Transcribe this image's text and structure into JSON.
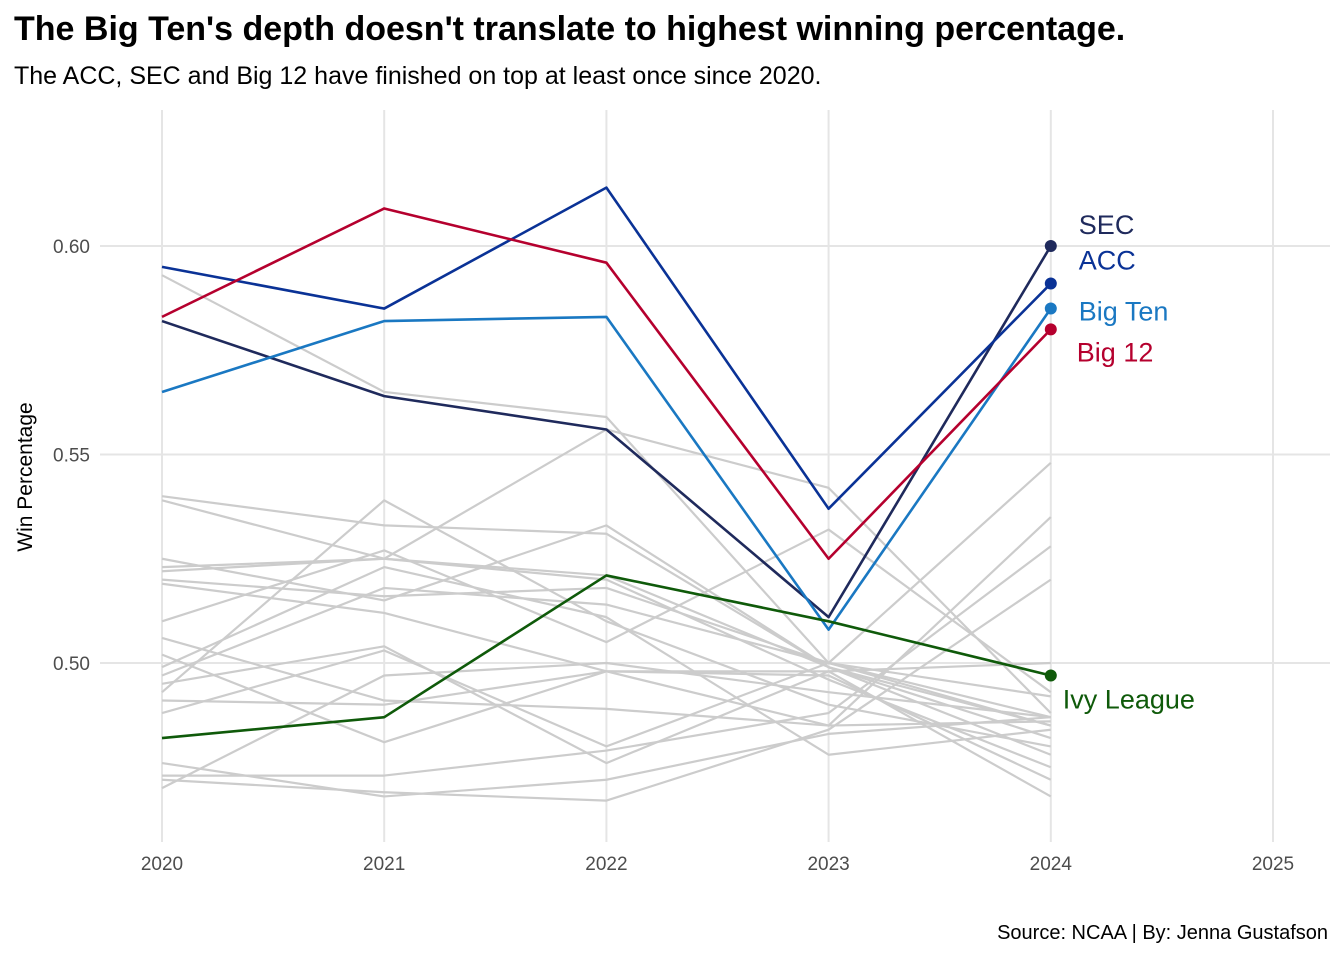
{
  "title": "The Big Ten's depth doesn't translate to highest winning percentage.",
  "subtitle": "The ACC, SEC and Big 12 have finished on top at least once since 2020.",
  "caption": "Source: NCAA | By: Jenna Gustafson",
  "chart_data": {
    "type": "line",
    "ylabel": "Win Percentage",
    "xlabel": "",
    "x_ticks": [
      "2020",
      "2021",
      "2022",
      "2023",
      "2024",
      "2025"
    ],
    "y_ticks": [
      "0.50",
      "0.55",
      "0.60"
    ],
    "xlim": [
      2020,
      2025
    ],
    "ylim": [
      0.462,
      0.625
    ],
    "grid": true,
    "x": [
      2020,
      2021,
      2022,
      2023,
      2024
    ],
    "highlighted_series": [
      {
        "name": "SEC",
        "color": "#1f2a5c",
        "values": [
          0.582,
          0.564,
          0.556,
          0.511,
          0.6
        ]
      },
      {
        "name": "ACC",
        "color": "#0a3296",
        "values": [
          0.595,
          0.585,
          0.614,
          0.537,
          0.591
        ]
      },
      {
        "name": "Big Ten",
        "color": "#1a78c2",
        "values": [
          0.565,
          0.582,
          0.583,
          0.508,
          0.585
        ]
      },
      {
        "name": "Big 12",
        "color": "#b5002e",
        "values": [
          0.583,
          0.609,
          0.596,
          0.525,
          0.58
        ]
      },
      {
        "name": "Ivy League",
        "color": "#0f5a0a",
        "values": [
          0.482,
          0.487,
          0.521,
          0.51,
          0.497
        ]
      }
    ],
    "background_series_color": "#cccccc",
    "background_series": [
      [
        0.593,
        0.565,
        0.559,
        0.5,
        0.485
      ],
      [
        0.54,
        0.533,
        0.531,
        0.499,
        0.485
      ],
      [
        0.539,
        0.525,
        0.556,
        0.542,
        0.488
      ],
      [
        0.525,
        0.515,
        0.533,
        0.499,
        0.478
      ],
      [
        0.523,
        0.525,
        0.521,
        0.499,
        0.482
      ],
      [
        0.522,
        0.525,
        0.52,
        0.496,
        0.475
      ],
      [
        0.52,
        0.516,
        0.518,
        0.5,
        0.487
      ],
      [
        0.519,
        0.512,
        0.498,
        0.498,
        0.5
      ],
      [
        0.506,
        0.491,
        0.489,
        0.485,
        0.486
      ],
      [
        0.502,
        0.481,
        0.498,
        0.497,
        0.472
      ],
      [
        0.497,
        0.518,
        0.514,
        0.5,
        0.548
      ],
      [
        0.491,
        0.49,
        0.498,
        0.485,
        0.535
      ],
      [
        0.473,
        0.473,
        0.479,
        0.488,
        0.528
      ],
      [
        0.472,
        0.469,
        0.467,
        0.484,
        0.52
      ],
      [
        0.493,
        0.539,
        0.51,
        0.49,
        0.48
      ],
      [
        0.47,
        0.497,
        0.5,
        0.493,
        0.487
      ],
      [
        0.495,
        0.504,
        0.476,
        0.498,
        0.468
      ],
      [
        0.476,
        0.468,
        0.472,
        0.483,
        0.487
      ],
      [
        0.499,
        0.523,
        0.511,
        0.478,
        0.484
      ],
      [
        0.488,
        0.503,
        0.48,
        0.5,
        0.492
      ],
      [
        0.51,
        0.527,
        0.505,
        0.532,
        0.493
      ]
    ]
  }
}
